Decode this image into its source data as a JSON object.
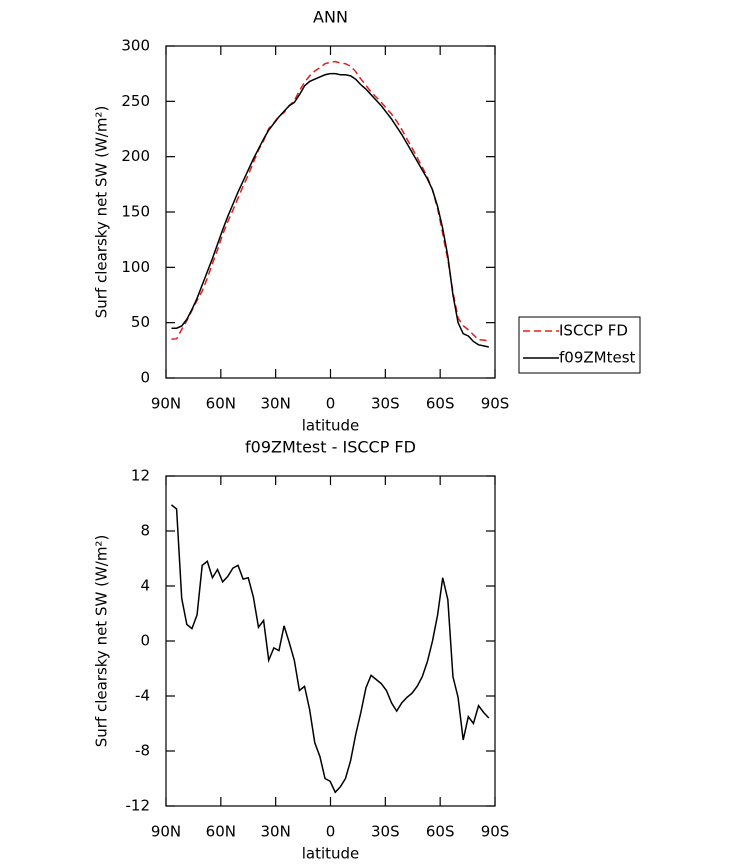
{
  "chart_data": [
    {
      "type": "line",
      "title": "ANN",
      "xlabel": "latitude",
      "ylabel": "Surf clearsky net SW (W/m²)",
      "x": [
        87,
        84.2,
        81.4,
        78.6,
        75.8,
        73,
        70.2,
        67.4,
        64.6,
        61.8,
        59,
        56.2,
        53.4,
        50.6,
        47.8,
        45,
        42.2,
        39.4,
        36.6,
        33.8,
        31,
        28.2,
        25.4,
        22.6,
        19.8,
        17,
        14.2,
        11.4,
        8.6,
        5.8,
        3,
        0.2,
        -2.6,
        -5.4,
        -8.2,
        -11,
        -13.8,
        -16.6,
        -19.4,
        -22.2,
        -25,
        -27.8,
        -30.6,
        -33.4,
        -36.2,
        -39,
        -41.8,
        -44.6,
        -47.4,
        -50.2,
        -53,
        -55.8,
        -58.6,
        -61.4,
        -64.2,
        -67,
        -69.8,
        -72.6,
        -75.4,
        -78.2,
        -81,
        -83.8,
        -86.6
      ],
      "series": [
        {
          "name": "ISCCP FD",
          "color": "#e0201b",
          "line_style": "dashed",
          "values": [
            35.1,
            35.4,
            43.9,
            51.8,
            61.1,
            70.1,
            78.5,
            90.2,
            103.4,
            115.8,
            129.7,
            141.3,
            151.7,
            162.5,
            173.5,
            183.4,
            194.8,
            206,
            214.5,
            225.4,
            230.5,
            236.7,
            239.9,
            246.1,
            250.4,
            259.6,
            267.3,
            273,
            277.4,
            280.4,
            284,
            285.2,
            286,
            284.6,
            284,
            281.7,
            276.8,
            270.2,
            264.4,
            258.5,
            253.8,
            249.1,
            243.6,
            238.5,
            232.1,
            224.5,
            216.1,
            207.8,
            199.3,
            190.6,
            181.5,
            170,
            153.1,
            130.4,
            107,
            77.6,
            54.1,
            47.2,
            43.5,
            39,
            34.7,
            34.2,
            33.6
          ]
        },
        {
          "name": "f09ZMtest",
          "color": "#000000",
          "line_style": "solid",
          "values": [
            45,
            45,
            47,
            53,
            62,
            72,
            84,
            96,
            108,
            121,
            134,
            146,
            157,
            168,
            178,
            188,
            198,
            207,
            216,
            224,
            230,
            236,
            241,
            246,
            249,
            256,
            264,
            268,
            270,
            272,
            274,
            275,
            275,
            274,
            274,
            273,
            270,
            265,
            261,
            256,
            251,
            246,
            240,
            234,
            227,
            220,
            212,
            204,
            196,
            188,
            180,
            170,
            155,
            135,
            110,
            75,
            50,
            40,
            38,
            33,
            30,
            29,
            28
          ]
        }
      ],
      "xlim": [
        90,
        -90
      ],
      "xticks": [
        {
          "value": 90,
          "label": "90N"
        },
        {
          "value": 60,
          "label": "60N"
        },
        {
          "value": 30,
          "label": "30N"
        },
        0,
        {
          "value": -30,
          "label": "30S"
        },
        {
          "value": -60,
          "label": "60S"
        },
        {
          "value": -90,
          "label": "90S"
        }
      ],
      "ylim": [
        0,
        300
      ],
      "yticks": [
        0,
        50,
        100,
        150,
        200,
        250,
        300
      ],
      "legend": "right"
    },
    {
      "type": "line",
      "title": "f09ZMtest - ISCCP FD",
      "xlabel": "latitude",
      "ylabel": "Surf clearsky net SW (W/m²)",
      "x": [
        87,
        84.2,
        81.4,
        78.6,
        75.8,
        73,
        70.2,
        67.4,
        64.6,
        61.8,
        59,
        56.2,
        53.4,
        50.6,
        47.8,
        45,
        42.2,
        39.4,
        36.6,
        33.8,
        31,
        28.2,
        25.4,
        22.6,
        19.8,
        17,
        14.2,
        11.4,
        8.6,
        5.8,
        3,
        0.2,
        -2.6,
        -5.4,
        -8.2,
        -11,
        -13.8,
        -16.6,
        -19.4,
        -22.2,
        -25,
        -27.8,
        -30.6,
        -33.4,
        -36.2,
        -39,
        -41.8,
        -44.6,
        -47.4,
        -50.2,
        -53,
        -55.8,
        -58.6,
        -61.4,
        -64.2,
        -67,
        -69.8,
        -72.6,
        -75.4,
        -78.2,
        -81,
        -83.8,
        -86.6
      ],
      "values": [
        9.9,
        9.6,
        3.1,
        1.2,
        0.9,
        1.9,
        5.5,
        5.8,
        4.6,
        5.2,
        4.3,
        4.7,
        5.3,
        5.5,
        4.5,
        4.6,
        3.2,
        1.0,
        1.5,
        -1.4,
        -0.5,
        -0.7,
        1.1,
        -0.1,
        -1.4,
        -3.6,
        -3.3,
        -5.0,
        -7.4,
        -8.4,
        -10.0,
        -10.2,
        -11.0,
        -10.6,
        -10.0,
        -8.7,
        -6.8,
        -5.2,
        -3.4,
        -2.5,
        -2.8,
        -3.1,
        -3.6,
        -4.5,
        -5.1,
        -4.5,
        -4.1,
        -3.8,
        -3.3,
        -2.6,
        -1.5,
        0,
        1.9,
        4.6,
        3.0,
        -2.6,
        -4.1,
        -7.2,
        -5.5,
        -6.0,
        -4.7,
        -5.2,
        -5.6
      ],
      "color": "#000000",
      "line_style": "solid",
      "xlim": [
        90,
        -90
      ],
      "xticks": [
        {
          "value": 90,
          "label": "90N"
        },
        {
          "value": 60,
          "label": "60N"
        },
        {
          "value": 30,
          "label": "30N"
        },
        0,
        {
          "value": -30,
          "label": "30S"
        },
        {
          "value": -60,
          "label": "60S"
        },
        {
          "value": -90,
          "label": "90S"
        }
      ],
      "ylim": [
        -12,
        12
      ],
      "yticks": [
        -12,
        -8,
        -4,
        0,
        4,
        8,
        12
      ]
    }
  ]
}
